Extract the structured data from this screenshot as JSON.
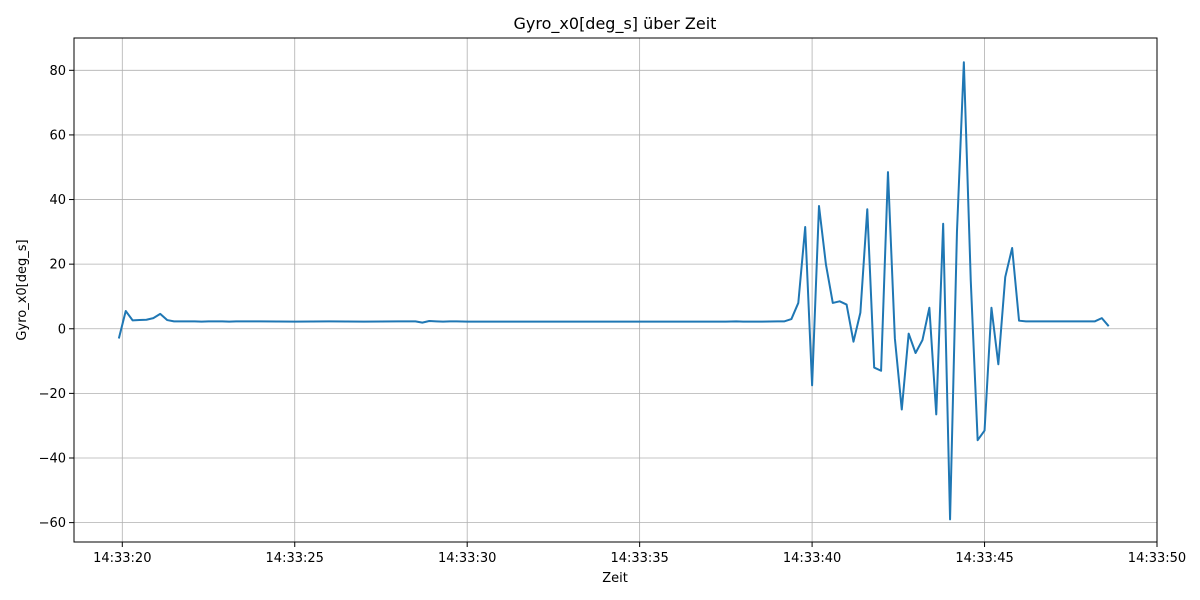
{
  "chart_data": {
    "type": "line",
    "title": "Gyro_x0[deg_s] über Zeit",
    "xlabel": "Zeit",
    "ylabel": "Gyro_x0[deg_s]",
    "x_unit": "seconds after 14:33:00",
    "xlim": [
      18.6,
      50.0
    ],
    "ylim": [
      -66,
      90
    ],
    "x_ticks": [
      20,
      25,
      30,
      35,
      40,
      45,
      50
    ],
    "x_tick_labels": [
      "14:33:20",
      "14:33:25",
      "14:33:30",
      "14:33:35",
      "14:33:40",
      "14:33:45",
      "14:33:50"
    ],
    "y_ticks": [
      -60,
      -40,
      -20,
      0,
      20,
      40,
      60,
      80
    ],
    "y_tick_labels": [
      "−60",
      "−40",
      "−20",
      "0",
      "20",
      "40",
      "60",
      "80"
    ],
    "grid": true,
    "series": [
      {
        "name": "",
        "color": "#1f77b4",
        "x": [
          19.9,
          20.1,
          20.3,
          20.5,
          20.7,
          20.9,
          21.1,
          21.3,
          21.5,
          21.7,
          21.9,
          22.1,
          22.3,
          22.5,
          22.7,
          22.9,
          23.1,
          23.3,
          23.5,
          23.7,
          24.0,
          25.0,
          26.0,
          27.0,
          28.0,
          28.5,
          28.7,
          28.9,
          29.1,
          29.3,
          29.5,
          29.7,
          30.0,
          31.0,
          32.0,
          33.0,
          34.0,
          35.0,
          36.0,
          37.0,
          37.5,
          37.8,
          38.0,
          38.5,
          39.0,
          39.2,
          39.4,
          39.6,
          39.8,
          40.0,
          40.2,
          40.4,
          40.6,
          40.8,
          41.0,
          41.2,
          41.4,
          41.6,
          41.8,
          42.0,
          42.2,
          42.4,
          42.6,
          42.8,
          43.0,
          43.2,
          43.4,
          43.6,
          43.8,
          44.0,
          44.2,
          44.4,
          44.6,
          44.8,
          45.0,
          45.2,
          45.4,
          45.6,
          45.8,
          46.0,
          46.2,
          46.4,
          46.6,
          47.0,
          47.5,
          48.0,
          48.2,
          48.4,
          48.6
        ],
        "y": [
          -3,
          5.5,
          2.6,
          2.7,
          2.8,
          3.3,
          4.6,
          2.7,
          2.3,
          2.3,
          2.3,
          2.3,
          2.2,
          2.3,
          2.3,
          2.3,
          2.2,
          2.3,
          2.3,
          2.3,
          2.3,
          2.2,
          2.3,
          2.2,
          2.3,
          2.3,
          1.9,
          2.4,
          2.3,
          2.2,
          2.3,
          2.3,
          2.2,
          2.2,
          2.2,
          2.2,
          2.2,
          2.2,
          2.2,
          2.2,
          2.2,
          2.3,
          2.2,
          2.2,
          2.3,
          2.3,
          3.0,
          8.0,
          31.5,
          -17.5,
          38.0,
          20.0,
          8.0,
          8.5,
          7.5,
          -4.0,
          5.0,
          37.0,
          -12.0,
          -13.0,
          48.5,
          -3.0,
          -25.0,
          -1.5,
          -7.5,
          -3.5,
          6.5,
          -26.5,
          32.5,
          -59.0,
          30.0,
          82.5,
          15.0,
          -34.5,
          -31.5,
          6.5,
          -11.0,
          16.0,
          25.0,
          2.5,
          2.3,
          2.3,
          2.3,
          2.3,
          2.3,
          2.3,
          2.3,
          3.3,
          0.8
        ]
      }
    ]
  }
}
